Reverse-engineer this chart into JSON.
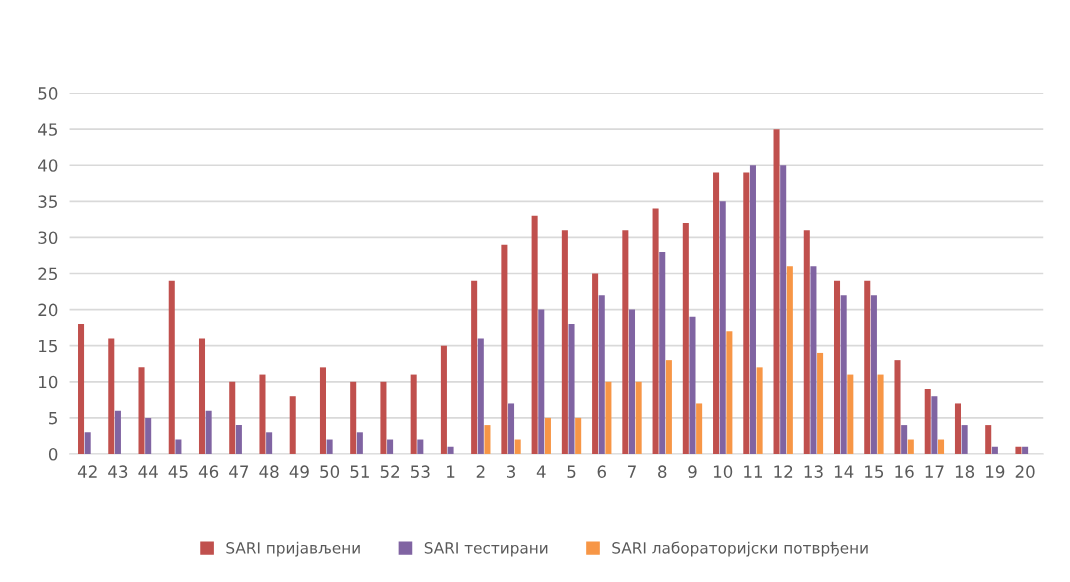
{
  "chart_data": {
    "type": "bar",
    "categories": [
      "42",
      "43",
      "44",
      "45",
      "46",
      "47",
      "48",
      "49",
      "50",
      "51",
      "52",
      "53",
      "1",
      "2",
      "3",
      "4",
      "5",
      "6",
      "7",
      "8",
      "9",
      "10",
      "11",
      "12",
      "13",
      "14",
      "15",
      "16",
      "17",
      "18",
      "19",
      "20"
    ],
    "series": [
      {
        "name": "SARI пријављени",
        "color": "#c0504d",
        "values": [
          18,
          16,
          12,
          24,
          16,
          10,
          11,
          8,
          12,
          10,
          10,
          11,
          15,
          24,
          29,
          33,
          31,
          25,
          31,
          34,
          32,
          39,
          39,
          45,
          31,
          24,
          24,
          13,
          9,
          7,
          4,
          1
        ]
      },
      {
        "name": "SARI тестирани",
        "color": "#8064a2",
        "values": [
          3,
          6,
          5,
          2,
          6,
          4,
          3,
          0,
          2,
          3,
          2,
          2,
          1,
          16,
          7,
          20,
          18,
          22,
          20,
          28,
          19,
          35,
          40,
          40,
          26,
          22,
          22,
          4,
          8,
          4,
          1,
          1
        ]
      },
      {
        "name": "SARI лабораторијски потврђени",
        "color": "#f79646",
        "values": [
          0,
          0,
          0,
          0,
          0,
          0,
          0,
          0,
          0,
          0,
          0,
          0,
          0,
          4,
          2,
          5,
          5,
          10,
          10,
          13,
          7,
          17,
          12,
          26,
          14,
          11,
          11,
          2,
          2,
          0,
          0,
          0
        ]
      }
    ],
    "ylim": [
      0,
      50
    ],
    "yticks": [
      0,
      5,
      10,
      15,
      20,
      25,
      30,
      35,
      40,
      45,
      50
    ],
    "grid": "y",
    "legend": "bottom"
  }
}
